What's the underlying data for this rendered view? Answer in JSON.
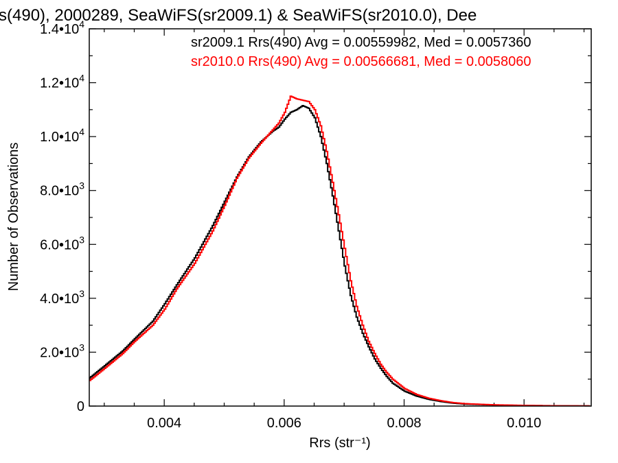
{
  "chart_data": {
    "type": "line",
    "title": "s(490), 2000289, SeaWiFS(sr2009.1) & SeaWiFS(sr2010.0), Dee",
    "xlabel": "Rrs (str⁻¹)",
    "ylabel": "Number of Observations",
    "xlim": [
      0.00275,
      0.01112
    ],
    "ylim": [
      0,
      14000
    ],
    "grid": false,
    "legend_placement": "top-right",
    "x_tick_values": [
      0.004,
      0.006,
      0.008,
      0.01
    ],
    "x_tick_labels": [
      "0.004",
      "0.006",
      "0.008",
      "0.010"
    ],
    "y_ticks": [
      {
        "value": 0,
        "mantissa": "0",
        "exponent": ""
      },
      {
        "value": 2000,
        "mantissa": "2.0•10",
        "exponent": "3"
      },
      {
        "value": 4000,
        "mantissa": "4.0•10",
        "exponent": "3"
      },
      {
        "value": 6000,
        "mantissa": "6.0•10",
        "exponent": "3"
      },
      {
        "value": 8000,
        "mantissa": "8.0•10",
        "exponent": "3"
      },
      {
        "value": 10000,
        "mantissa": "1.0•10",
        "exponent": "4"
      },
      {
        "value": 12000,
        "mantissa": "1.2•10",
        "exponent": "4"
      },
      {
        "value": 14000,
        "mantissa": "1.4•10",
        "exponent": "4"
      }
    ],
    "series": [
      {
        "name": "sr2009.1 Rrs(490) Avg = 0.00559982, Med = 0.0057360",
        "color": "#000000",
        "x": [
          0.00275,
          0.003,
          0.0033,
          0.0035,
          0.0038,
          0.004,
          0.0042,
          0.0045,
          0.0048,
          0.005,
          0.0052,
          0.0054,
          0.0056,
          0.0058,
          0.0059,
          0.006,
          0.0061,
          0.0062,
          0.0063,
          0.0064,
          0.0065,
          0.0066,
          0.0067,
          0.0068,
          0.0069,
          0.007,
          0.0071,
          0.0072,
          0.0073,
          0.0074,
          0.0075,
          0.0076,
          0.0077,
          0.0078,
          0.008,
          0.0082,
          0.0084,
          0.0086,
          0.0088,
          0.009,
          0.0095,
          0.01,
          0.0105,
          0.0111
        ],
        "values": [
          1050,
          1500,
          2050,
          2500,
          3150,
          3800,
          4500,
          5500,
          6700,
          7600,
          8500,
          9250,
          9800,
          10200,
          10350,
          10650,
          10900,
          11000,
          11150,
          11050,
          10700,
          10000,
          9000,
          7800,
          6500,
          5200,
          4100,
          3300,
          2700,
          2200,
          1750,
          1400,
          1100,
          850,
          550,
          370,
          250,
          170,
          110,
          75,
          40,
          20,
          10,
          5
        ]
      },
      {
        "name": "sr2010.0 Rrs(490) Avg = 0.00566681, Med = 0.0058060",
        "color": "#ff0000",
        "x": [
          0.00275,
          0.003,
          0.0033,
          0.0035,
          0.0038,
          0.004,
          0.0042,
          0.0045,
          0.0048,
          0.005,
          0.0052,
          0.0054,
          0.0056,
          0.0058,
          0.0059,
          0.006,
          0.0061,
          0.0062,
          0.0063,
          0.0064,
          0.0065,
          0.0066,
          0.0067,
          0.0068,
          0.0069,
          0.007,
          0.0071,
          0.0072,
          0.0073,
          0.0074,
          0.0075,
          0.0076,
          0.0077,
          0.0078,
          0.008,
          0.0082,
          0.0084,
          0.0086,
          0.0088,
          0.009,
          0.0095,
          0.01,
          0.0105,
          0.0111
        ],
        "values": [
          950,
          1400,
          1950,
          2400,
          3000,
          3600,
          4350,
          5300,
          6500,
          7450,
          8450,
          9200,
          9750,
          10250,
          10500,
          10900,
          11500,
          11400,
          11350,
          11300,
          11000,
          10400,
          9450,
          8300,
          7100,
          5850,
          4650,
          3700,
          3000,
          2400,
          1950,
          1550,
          1250,
          1000,
          650,
          430,
          290,
          200,
          130,
          90,
          45,
          25,
          12,
          6
        ]
      }
    ]
  }
}
